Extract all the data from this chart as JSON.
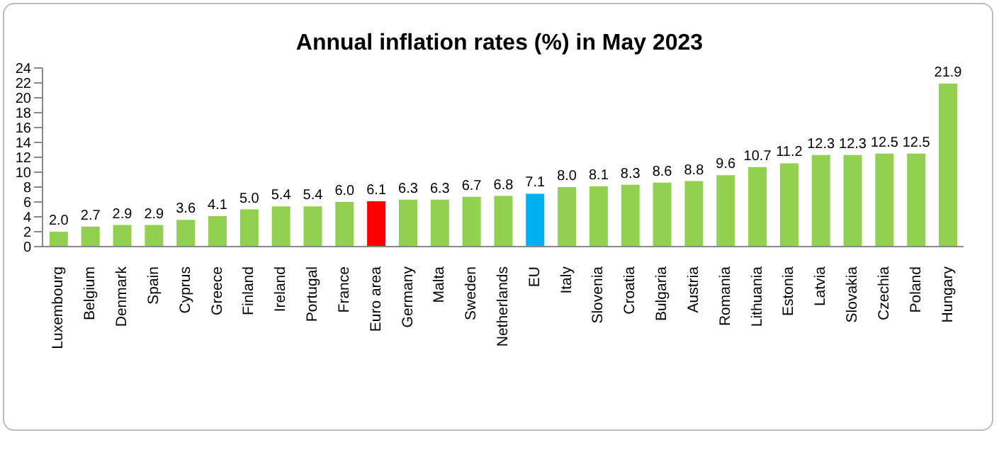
{
  "chart_data": {
    "type": "bar",
    "title": "Annual inflation rates (%) in May 2023",
    "categories": [
      "Luxembourg",
      "Belgium",
      "Denmark",
      "Spain",
      "Cyprus",
      "Greece",
      "Finland",
      "Ireland",
      "Portugal",
      "France",
      "Euro area",
      "Germany",
      "Malta",
      "Sweden",
      "Netherlands",
      "EU",
      "Italy",
      "Slovenia",
      "Croatia",
      "Bulgaria",
      "Austria",
      "Romania",
      "Lithuania",
      "Estonia",
      "Latvia",
      "Slovakia",
      "Czechia",
      "Poland",
      "Hungary"
    ],
    "values": [
      2.0,
      2.7,
      2.9,
      2.9,
      3.6,
      4.1,
      5.0,
      5.4,
      5.4,
      6.0,
      6.1,
      6.3,
      6.3,
      6.7,
      6.8,
      7.1,
      8.0,
      8.1,
      8.3,
      8.6,
      8.8,
      9.6,
      10.7,
      11.2,
      12.3,
      12.3,
      12.5,
      12.5,
      21.9
    ],
    "value_labels": [
      "2.0",
      "2.7",
      "2.9",
      "2.9",
      "3.6",
      "4.1",
      "5.0",
      "5.4",
      "5.4",
      "6.0",
      "6.1",
      "6.3",
      "6.3",
      "6.7",
      "6.8",
      "7.1",
      "8.0",
      "8.1",
      "8.3",
      "8.6",
      "8.8",
      "9.6",
      "10.7",
      "11.2",
      "12.3",
      "12.3",
      "12.5",
      "12.5",
      "21.9"
    ],
    "colors": [
      "#92d050",
      "#92d050",
      "#92d050",
      "#92d050",
      "#92d050",
      "#92d050",
      "#92d050",
      "#92d050",
      "#92d050",
      "#92d050",
      "#ff0000",
      "#92d050",
      "#92d050",
      "#92d050",
      "#92d050",
      "#00b0f0",
      "#92d050",
      "#92d050",
      "#92d050",
      "#92d050",
      "#92d050",
      "#92d050",
      "#92d050",
      "#92d050",
      "#92d050",
      "#92d050",
      "#92d050",
      "#92d050",
      "#92d050"
    ],
    "ylim": [
      0,
      24
    ],
    "yticks": [
      0,
      2,
      4,
      6,
      8,
      10,
      12,
      14,
      16,
      18,
      20,
      22,
      24
    ],
    "grid": false
  }
}
